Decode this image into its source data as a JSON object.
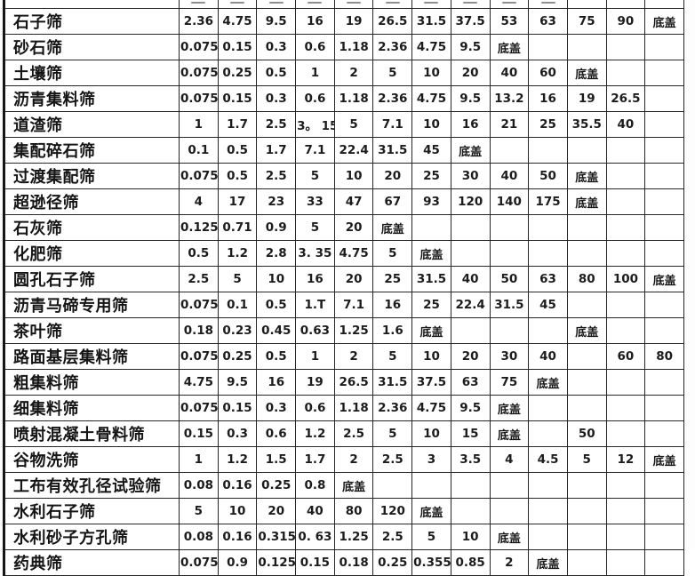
{
  "colors": {
    "border": "#262626",
    "text": "#1c1c1c",
    "background": "#ffffff"
  },
  "table": {
    "bottom_cover_label": "底盖",
    "rows": [
      {
        "label": "石子筛",
        "values": [
          "2.36",
          "4.75",
          "9.5",
          "16",
          "19",
          "26.5",
          "31.5",
          "37.5",
          "53",
          "63",
          "75",
          "90",
          "底盖"
        ]
      },
      {
        "label": "砂石筛",
        "values": [
          "0.075",
          "0.15",
          "0.3",
          "0.6",
          "1.18",
          "2.36",
          "4.75",
          "9.5",
          "底盖",
          "",
          "",
          "",
          ""
        ]
      },
      {
        "label": "土壤筛",
        "values": [
          "0.075",
          "0.25",
          "0.5",
          "1",
          "2",
          "5",
          "10",
          "20",
          "40",
          "60",
          "底盖",
          "",
          ""
        ]
      },
      {
        "label": "沥青集料筛",
        "values": [
          "0.075",
          "0.15",
          "0.3",
          "0.6",
          "1.18",
          "2.36",
          "4.75",
          "9.5",
          "13.2",
          "16",
          "19",
          "26.5",
          ""
        ]
      },
      {
        "label": "道渣筛",
        "values": [
          "1",
          "1.7",
          "2.5",
          "3。 15",
          "5",
          "7.1",
          "10",
          "16",
          "21",
          "25",
          "35.5",
          "40",
          ""
        ]
      },
      {
        "label": "集配碎石筛",
        "values": [
          "0.1",
          "0.5",
          "1.7",
          "7.1",
          "22.4",
          "31.5",
          "45",
          "底盖",
          "",
          "",
          "",
          "",
          ""
        ]
      },
      {
        "label": "过渡集配筛",
        "values": [
          "0.075",
          "0.5",
          "2.5",
          "5",
          "10",
          "20",
          "25",
          "30",
          "40",
          "50",
          "底盖",
          "",
          ""
        ]
      },
      {
        "label": "超逊径筛",
        "values": [
          "4",
          "17",
          "23",
          "33",
          "47",
          "67",
          "93",
          "120",
          "140",
          "175",
          "底盖",
          "",
          ""
        ]
      },
      {
        "label": "石灰筛",
        "values": [
          "0.125",
          "0.71",
          "0.9",
          "5",
          "20",
          "底盖",
          "",
          "",
          "",
          "",
          "",
          "",
          ""
        ]
      },
      {
        "label": "化肥筛",
        "values": [
          "0.5",
          "1.2",
          "2.8",
          "3. 35",
          "4.75",
          "5",
          "底盖",
          "",
          "",
          "",
          "",
          "",
          ""
        ]
      },
      {
        "label": "圆孔石子筛",
        "values": [
          "2.5",
          "5",
          "10",
          "16",
          "20",
          "25",
          "31.5",
          "40",
          "50",
          "63",
          "80",
          "100",
          "底盖"
        ]
      },
      {
        "label": "沥青马碲专用筛",
        "values": [
          "0.075",
          "0.1",
          "0.5",
          "1.T",
          "7.1",
          "16",
          "25",
          "22.4",
          "31.5",
          "45",
          "",
          "",
          ""
        ]
      },
      {
        "label": "茶叶筛",
        "values": [
          "0.18",
          "0.23",
          "0.45",
          "0.63",
          "1.25",
          "1.6",
          "底盖",
          "",
          "",
          "",
          "底盖",
          "",
          ""
        ]
      },
      {
        "label": "路面基层集料筛",
        "values": [
          "0.075",
          "0.25",
          "0.5",
          "1",
          "2",
          "5",
          "10",
          "20",
          "30",
          "40",
          "",
          "60",
          "80"
        ]
      },
      {
        "label": "粗集料筛",
        "values": [
          "4.75",
          "9.5",
          "16",
          "19",
          "26.5",
          "31.5",
          "37.5",
          "63",
          "75",
          "底盖",
          "",
          "",
          ""
        ]
      },
      {
        "label": "细集料筛",
        "values": [
          "0.075",
          "0.15",
          "0.3",
          "0.6",
          "1.18",
          "2.36",
          "4.75",
          "9.5",
          "底盖",
          "",
          "",
          "",
          ""
        ]
      },
      {
        "label": "喷射混凝土骨料筛",
        "values": [
          "0.15",
          "0.3",
          "0.6",
          "1.2",
          "2.5",
          "5",
          "10",
          "15",
          "底盖",
          "",
          "50",
          "",
          ""
        ]
      },
      {
        "label": "谷物洗筛",
        "values": [
          "1",
          "1.2",
          "1.5",
          "1.7",
          "2",
          "2.5",
          "3",
          "3.5",
          "4",
          "4.5",
          "5",
          "12",
          "底盖"
        ]
      },
      {
        "label": "工布有效孔径试验筛",
        "values": [
          "0.08",
          "0.16",
          "0.25",
          "0.8",
          "底盖",
          "",
          "",
          "",
          "",
          "",
          "",
          "",
          ""
        ]
      },
      {
        "label": "水利石子筛",
        "values": [
          "5",
          "10",
          "20",
          "40",
          "80",
          "120",
          "底盖",
          "",
          "",
          "",
          "",
          "",
          ""
        ]
      },
      {
        "label": "水利砂子方孔筛",
        "values": [
          "0.08",
          "0.16",
          "0.315",
          "0. 63",
          "1.25",
          "2.5",
          "5",
          "10",
          "底盖",
          "",
          "",
          "",
          ""
        ]
      },
      {
        "label": "药典筛",
        "values": [
          "0.075",
          "0.9",
          "0.125",
          "0.15",
          "0.18",
          "0.25",
          "0.355",
          "0.85",
          "2",
          "底盖",
          "",
          "",
          ""
        ]
      }
    ]
  }
}
